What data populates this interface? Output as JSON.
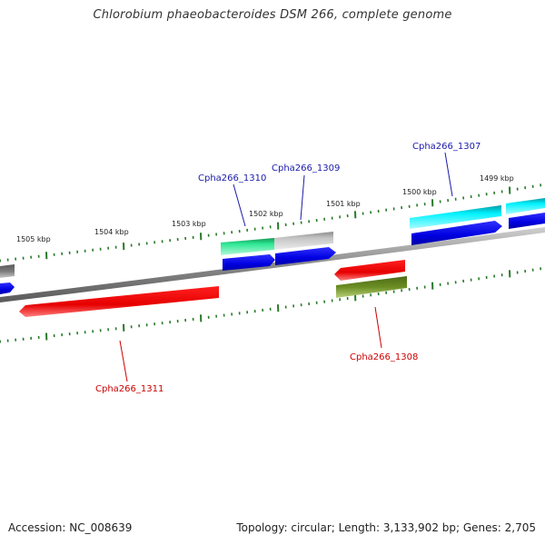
{
  "title": "Chlorobium phaeobacteroides DSM 266, complete genome",
  "footer": {
    "accession": "Accession: NC_008639",
    "topology": "Topology: circular; Length: 3,133,902 bp; Genes: 2,705"
  },
  "ruler_labels": [
    "1505 kbp",
    "1504 kbp",
    "1503 kbp",
    "1502 kbp",
    "1501 kbp",
    "1500 kbp",
    "1499 kbp"
  ],
  "gene_labels": {
    "cpha1310": "Cpha266_1310",
    "cpha1309": "Cpha266_1309",
    "cpha1307": "Cpha266_1307",
    "cpha1308": "Cpha266_1308",
    "cpha1311": "Cpha266_1311"
  },
  "colors": {
    "forward_label": "#1a1aaa",
    "reverse_label": "#cc0000",
    "backbone": "#8c8c8c",
    "tick": "#2a7a2a",
    "blue_cds": "#0000ee",
    "red_cds": "#ee0000",
    "cyan_gene": "#00e5ee",
    "green_gene": "#22dd88",
    "grey_gene": "#bdbdbd",
    "olive_gene": "#6b8e23"
  }
}
